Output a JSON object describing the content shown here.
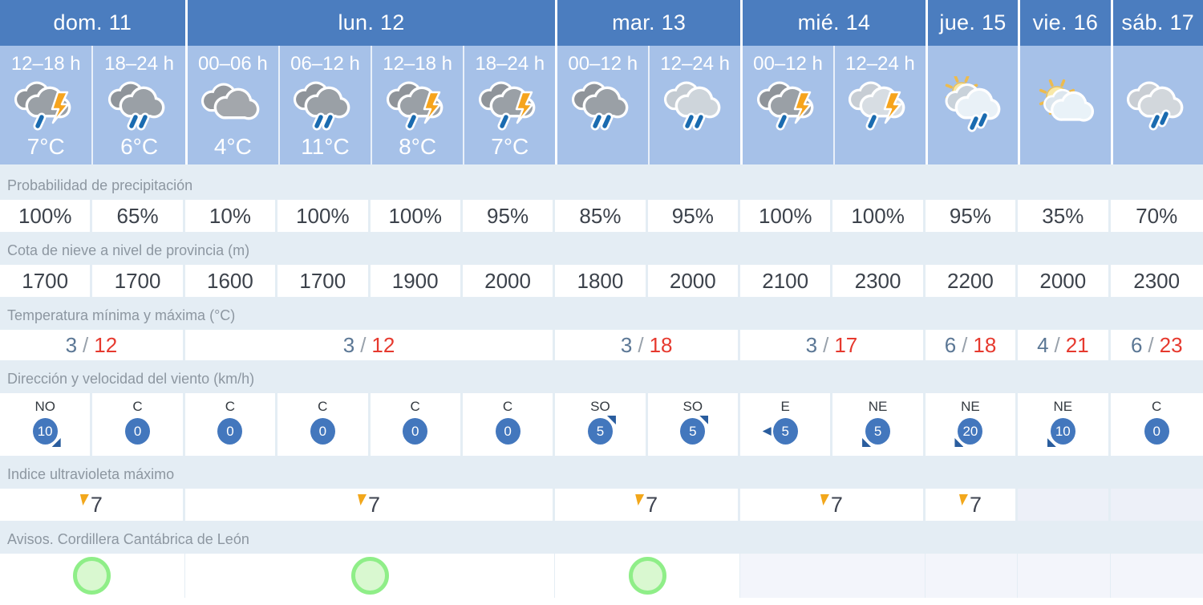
{
  "days": [
    {
      "label": "dom. 11",
      "cols": 2
    },
    {
      "label": "lun. 12",
      "cols": 4
    },
    {
      "label": "mar. 13",
      "cols": 2
    },
    {
      "label": "mié. 14",
      "cols": 2
    },
    {
      "label": "jue. 15",
      "cols": 1
    },
    {
      "label": "vie. 16",
      "cols": 1
    },
    {
      "label": "sáb. 17",
      "cols": 1
    }
  ],
  "periods": [
    {
      "time": "12–18 h",
      "icon": "storm-rain",
      "temp": "7°C"
    },
    {
      "time": "18–24 h",
      "icon": "rain",
      "temp": "6°C"
    },
    {
      "time": "00–06 h",
      "icon": "cloudy",
      "temp": "4°C"
    },
    {
      "time": "06–12 h",
      "icon": "rain",
      "temp": "11°C"
    },
    {
      "time": "12–18 h",
      "icon": "storm-rain",
      "temp": "8°C"
    },
    {
      "time": "18–24 h",
      "icon": "storm-rain",
      "temp": "7°C"
    },
    {
      "time": "00–12 h",
      "icon": "rain",
      "temp": ""
    },
    {
      "time": "12–24 h",
      "icon": "rain-light",
      "temp": ""
    },
    {
      "time": "00–12 h",
      "icon": "storm-rain",
      "temp": ""
    },
    {
      "time": "12–24 h",
      "icon": "storm-light",
      "temp": ""
    },
    {
      "time": "",
      "icon": "sun-rain",
      "temp": ""
    },
    {
      "time": "",
      "icon": "sun-cloud",
      "temp": ""
    },
    {
      "time": "",
      "icon": "rain-gray",
      "temp": ""
    }
  ],
  "rows": {
    "precipitation": {
      "label": "Probabilidad de precipitación",
      "values": [
        "100%",
        "65%",
        "10%",
        "100%",
        "100%",
        "95%",
        "85%",
        "95%",
        "100%",
        "100%",
        "95%",
        "35%",
        "70%"
      ]
    },
    "snow": {
      "label": "Cota de nieve a nivel de provincia (m)",
      "values": [
        "1700",
        "1700",
        "1600",
        "1700",
        "1900",
        "2000",
        "1800",
        "2000",
        "2100",
        "2300",
        "2200",
        "2000",
        "2300"
      ]
    },
    "temperature": {
      "label": "Temperatura mínima y máxima (°C)",
      "separator": "/",
      "values": [
        {
          "min": "3",
          "max": "12"
        },
        {
          "min": "3",
          "max": "12"
        },
        {
          "min": "3",
          "max": "18"
        },
        {
          "min": "3",
          "max": "17"
        },
        {
          "min": "6",
          "max": "18"
        },
        {
          "min": "4",
          "max": "21"
        },
        {
          "min": "6",
          "max": "23"
        }
      ]
    },
    "wind": {
      "label": "Dirección y velocidad del viento (km/h)",
      "values": [
        {
          "dir": "NO",
          "speed": "10",
          "arrow": "se"
        },
        {
          "dir": "C",
          "speed": "0",
          "arrow": ""
        },
        {
          "dir": "C",
          "speed": "0",
          "arrow": ""
        },
        {
          "dir": "C",
          "speed": "0",
          "arrow": ""
        },
        {
          "dir": "C",
          "speed": "0",
          "arrow": ""
        },
        {
          "dir": "C",
          "speed": "0",
          "arrow": ""
        },
        {
          "dir": "SO",
          "speed": "5",
          "arrow": "ne"
        },
        {
          "dir": "SO",
          "speed": "5",
          "arrow": "ne"
        },
        {
          "dir": "E",
          "speed": "5",
          "arrow": "w"
        },
        {
          "dir": "NE",
          "speed": "5",
          "arrow": "sw"
        },
        {
          "dir": "NE",
          "speed": "20",
          "arrow": "sw"
        },
        {
          "dir": "NE",
          "speed": "10",
          "arrow": "sw"
        },
        {
          "dir": "C",
          "speed": "0",
          "arrow": ""
        }
      ]
    },
    "uv": {
      "label": "Indice ultravioleta máximo",
      "values": [
        "7",
        "7",
        "7",
        "7",
        "7",
        "",
        ""
      ]
    },
    "warnings": {
      "label": "Avisos. Cordillera Cantábrica de León",
      "values": [
        "aviso",
        "aviso",
        "aviso",
        "",
        "",
        "",
        ""
      ]
    }
  },
  "colors": {
    "day_header": "#4b7dbf",
    "subheader": "#a6c1e8",
    "section_bg": "#e4edf4",
    "label_text": "#8d97a1",
    "value_text": "#3c424b",
    "temp_min": "#5b7795",
    "temp_max": "#e6392e",
    "wind_circle": "#4377bd",
    "wind_arrow": "#2a5d9e",
    "uv_flag": "#f2a71b",
    "warning_green_border": "#8fee88",
    "warning_green_fill": "#d9f8d0",
    "rain_drop": "#1a6bb0",
    "lightning": "#f6a41d"
  }
}
